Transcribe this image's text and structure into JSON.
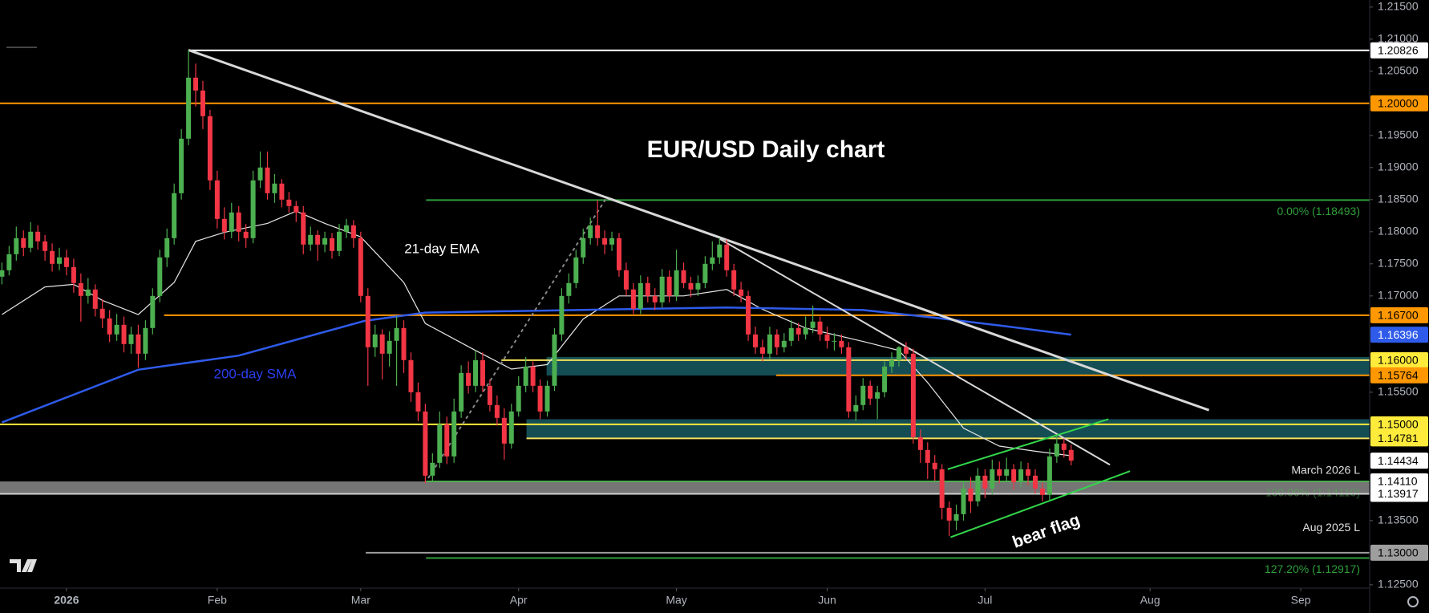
{
  "chart_data": {
    "type": "candlestick",
    "title": "EUR/USD Daily chart",
    "annotations": [
      "bear flag"
    ],
    "up_color": "#4caf50",
    "down_color": "#f23645",
    "grid": false,
    "xlim": [
      -9.27,
      181.6
    ],
    "xticks": [
      {
        "value": 0,
        "label": "2026"
      },
      {
        "value": 21,
        "label": "Feb"
      },
      {
        "value": 41,
        "label": "Mar"
      },
      {
        "value": 63,
        "label": "Apr"
      },
      {
        "value": 85,
        "label": "May"
      },
      {
        "value": 106,
        "label": "Jun"
      },
      {
        "value": 128,
        "label": "Jul"
      },
      {
        "value": 151,
        "label": "Aug"
      },
      {
        "value": 172,
        "label": "Sep"
      }
    ],
    "ylim": [
      1.12448,
      1.2161
    ],
    "yticks": [
      {
        "value": 1.215,
        "label": "1.21500"
      },
      {
        "value": 1.21,
        "label": "1.21000"
      },
      {
        "value": 1.205,
        "label": "1.20500"
      },
      {
        "value": 1.195,
        "label": "1.19500"
      },
      {
        "value": 1.19,
        "label": "1.19000"
      },
      {
        "value": 1.185,
        "label": "1.18500"
      },
      {
        "value": 1.18,
        "label": "1.18000"
      },
      {
        "value": 1.175,
        "label": "1.17500"
      },
      {
        "value": 1.17,
        "label": "1.17000"
      },
      {
        "value": 1.155,
        "label": "1.15500"
      },
      {
        "value": 1.135,
        "label": "1.13500"
      },
      {
        "value": 1.125,
        "label": "1.12500"
      }
    ],
    "x": [
      -9,
      -8,
      -7,
      -6,
      -5,
      -4,
      -3,
      -2,
      -1,
      0,
      1,
      2,
      3,
      4,
      5,
      6,
      7,
      8,
      9,
      10,
      11,
      12,
      13,
      14,
      15,
      16,
      17,
      18,
      19,
      20,
      21,
      22,
      23,
      24,
      25,
      26,
      27,
      28,
      29,
      30,
      31,
      32,
      33,
      34,
      35,
      36,
      37,
      38,
      39,
      40,
      41,
      42,
      43,
      44,
      45,
      46,
      47,
      48,
      49,
      50,
      51,
      52,
      53,
      54,
      55,
      56,
      57,
      58,
      59,
      60,
      61,
      62,
      63,
      64,
      65,
      66,
      67,
      68,
      69,
      70,
      71,
      72,
      73,
      74,
      75,
      76,
      77,
      78,
      79,
      80,
      81,
      82,
      83,
      84,
      85,
      86,
      87,
      88,
      89,
      90,
      91,
      92,
      93,
      94,
      95,
      96,
      97,
      98,
      99,
      100,
      101,
      102,
      103,
      104,
      105,
      106,
      107,
      108,
      109,
      110,
      111,
      112,
      113,
      114,
      115,
      116,
      117,
      118,
      119,
      120,
      121,
      122,
      123,
      124,
      125,
      126,
      127,
      128,
      129,
      130,
      131,
      132,
      133,
      134,
      135,
      136,
      137,
      138,
      139,
      140
    ],
    "series": {
      "open": [
        1.173,
        1.174,
        1.1765,
        1.179,
        1.1775,
        1.18,
        1.1785,
        1.177,
        1.175,
        1.176,
        1.1745,
        1.172,
        1.17,
        1.171,
        1.168,
        1.1665,
        1.164,
        1.1655,
        1.1625,
        1.164,
        1.161,
        1.165,
        1.17,
        1.176,
        1.179,
        1.186,
        1.1945,
        1.204,
        1.202,
        1.198,
        1.188,
        1.182,
        1.18,
        1.183,
        1.18,
        1.179,
        1.188,
        1.19,
        1.186,
        1.1875,
        1.185,
        1.184,
        1.183,
        1.178,
        1.1795,
        1.178,
        1.179,
        1.177,
        1.18,
        1.181,
        1.179,
        1.17,
        1.162,
        1.164,
        1.161,
        1.163,
        1.165,
        1.16,
        1.155,
        1.152,
        1.142,
        1.144,
        1.15,
        1.145,
        1.152,
        1.158,
        1.156,
        1.16,
        1.156,
        1.153,
        1.151,
        1.147,
        1.152,
        1.156,
        1.159,
        1.156,
        1.152,
        1.156,
        1.164,
        1.17,
        1.172,
        1.176,
        1.179,
        1.181,
        1.179,
        1.178,
        1.179,
        1.174,
        1.171,
        1.168,
        1.172,
        1.17,
        1.169,
        1.173,
        1.17,
        1.174,
        1.172,
        1.171,
        1.172,
        1.175,
        1.176,
        1.178,
        1.174,
        1.171,
        1.17,
        1.164,
        1.162,
        1.161,
        1.164,
        1.162,
        1.163,
        1.165,
        1.164,
        1.165,
        1.166,
        1.164,
        1.163,
        1.163,
        1.162,
        1.152,
        1.153,
        1.156,
        1.154,
        1.155,
        1.159,
        1.16,
        1.162,
        1.161,
        1.148,
        1.146,
        1.144,
        1.143,
        1.137,
        1.135,
        1.136,
        1.14,
        1.138,
        1.142,
        1.14,
        1.143,
        1.142,
        1.143,
        1.141,
        1.143,
        1.142,
        1.14,
        1.139,
        1.145,
        1.147,
        1.146
      ],
      "high": [
        1.1752,
        1.1778,
        1.1808,
        1.1802,
        1.1815,
        1.181,
        1.1795,
        1.1782,
        1.1775,
        1.1772,
        1.1758,
        1.1735,
        1.1728,
        1.1718,
        1.1695,
        1.1678,
        1.1672,
        1.1668,
        1.1652,
        1.1655,
        1.1662,
        1.1712,
        1.1772,
        1.1805,
        1.1875,
        1.196,
        1.2083,
        1.2062,
        1.2035,
        1.199,
        1.1895,
        1.1838,
        1.1845,
        1.184,
        1.1812,
        1.1895,
        1.1925,
        1.1925,
        1.189,
        1.1882,
        1.1862,
        1.1848,
        1.184,
        1.1808,
        1.1802,
        1.18,
        1.1798,
        1.1812,
        1.182,
        1.1818,
        1.18,
        1.1712,
        1.1655,
        1.1648,
        1.1645,
        1.1668,
        1.1662,
        1.1612,
        1.1565,
        1.1532,
        1.1455,
        1.152,
        1.1512,
        1.154,
        1.1592,
        1.1598,
        1.1615,
        1.1612,
        1.157,
        1.1545,
        1.1525,
        1.1532,
        1.1575,
        1.1605,
        1.1598,
        1.157,
        1.1568,
        1.165,
        1.1712,
        1.1735,
        1.1772,
        1.1805,
        1.1822,
        1.1849,
        1.1802,
        1.18,
        1.1798,
        1.1752,
        1.172,
        1.1732,
        1.173,
        1.1712,
        1.1742,
        1.174,
        1.1772,
        1.1752,
        1.173,
        1.1732,
        1.1762,
        1.1785,
        1.179,
        1.1788,
        1.175,
        1.1722,
        1.1708,
        1.1652,
        1.1632,
        1.1652,
        1.1648,
        1.1642,
        1.1662,
        1.1658,
        1.1668,
        1.1685,
        1.1668,
        1.1652,
        1.1642,
        1.164,
        1.1628,
        1.1545,
        1.1572,
        1.1568,
        1.156,
        1.1598,
        1.1612,
        1.1622,
        1.1628,
        1.1618,
        1.1492,
        1.1472,
        1.1452,
        1.1438,
        1.138,
        1.1375,
        1.1412,
        1.1418,
        1.1432,
        1.143,
        1.1445,
        1.1442,
        1.1448,
        1.1438,
        1.1442,
        1.144,
        1.143,
        1.141,
        1.1462,
        1.1483,
        1.1478,
        1.1468
      ],
      "low": [
        1.1718,
        1.1732,
        1.1755,
        1.1762,
        1.1768,
        1.1772,
        1.1755,
        1.1738,
        1.174,
        1.1732,
        1.1705,
        1.166,
        1.1688,
        1.1668,
        1.165,
        1.1628,
        1.163,
        1.1612,
        1.161,
        1.1588,
        1.16,
        1.164,
        1.169,
        1.1745,
        1.178,
        1.185,
        1.1935,
        1.1995,
        1.196,
        1.1865,
        1.1805,
        1.1788,
        1.179,
        1.1785,
        1.1775,
        1.1782,
        1.1868,
        1.185,
        1.1845,
        1.1838,
        1.183,
        1.1815,
        1.1765,
        1.177,
        1.1755,
        1.1768,
        1.1758,
        1.1762,
        1.179,
        1.1775,
        1.169,
        1.156,
        1.1605,
        1.157,
        1.159,
        1.156,
        1.158,
        1.1535,
        1.1505,
        1.1408,
        1.141,
        1.1432,
        1.1438,
        1.144,
        1.151,
        1.1548,
        1.155,
        1.155,
        1.152,
        1.1498,
        1.1445,
        1.1462,
        1.1512,
        1.155,
        1.155,
        1.1508,
        1.1512,
        1.1552,
        1.163,
        1.1688,
        1.1712,
        1.175,
        1.178,
        1.1778,
        1.1765,
        1.177,
        1.173,
        1.17,
        1.1672,
        1.1672,
        1.169,
        1.1678,
        1.1682,
        1.169,
        1.1692,
        1.1712,
        1.1698,
        1.17,
        1.1712,
        1.174,
        1.175,
        1.173,
        1.17,
        1.169,
        1.163,
        1.161,
        1.1598,
        1.1602,
        1.1608,
        1.1612,
        1.1622,
        1.163,
        1.1632,
        1.1642,
        1.163,
        1.1618,
        1.1615,
        1.161,
        1.151,
        1.1505,
        1.1522,
        1.153,
        1.1508,
        1.1542,
        1.158,
        1.159,
        1.16,
        1.147,
        1.144,
        1.1415,
        1.1412,
        1.1352,
        1.1326,
        1.1335,
        1.135,
        1.1362,
        1.1372,
        1.1385,
        1.139,
        1.1408,
        1.1412,
        1.1398,
        1.1402,
        1.1405,
        1.1392,
        1.138,
        1.1382,
        1.144,
        1.1448,
        1.1436
      ],
      "close": [
        1.174,
        1.1765,
        1.179,
        1.1775,
        1.18,
        1.1785,
        1.177,
        1.175,
        1.176,
        1.1745,
        1.172,
        1.17,
        1.171,
        1.168,
        1.1665,
        1.164,
        1.1655,
        1.1625,
        1.164,
        1.161,
        1.165,
        1.17,
        1.176,
        1.179,
        1.186,
        1.1945,
        1.204,
        1.202,
        1.198,
        1.188,
        1.182,
        1.18,
        1.183,
        1.18,
        1.179,
        1.188,
        1.19,
        1.186,
        1.1875,
        1.185,
        1.184,
        1.183,
        1.178,
        1.1795,
        1.178,
        1.179,
        1.177,
        1.18,
        1.181,
        1.179,
        1.17,
        1.162,
        1.164,
        1.161,
        1.163,
        1.165,
        1.16,
        1.155,
        1.152,
        1.142,
        1.144,
        1.15,
        1.145,
        1.152,
        1.158,
        1.156,
        1.16,
        1.156,
        1.153,
        1.151,
        1.147,
        1.152,
        1.156,
        1.159,
        1.156,
        1.152,
        1.156,
        1.164,
        1.17,
        1.172,
        1.176,
        1.179,
        1.181,
        1.179,
        1.178,
        1.179,
        1.174,
        1.171,
        1.168,
        1.172,
        1.17,
        1.169,
        1.173,
        1.17,
        1.174,
        1.172,
        1.171,
        1.172,
        1.175,
        1.176,
        1.178,
        1.174,
        1.171,
        1.17,
        1.164,
        1.162,
        1.161,
        1.164,
        1.162,
        1.163,
        1.165,
        1.164,
        1.165,
        1.166,
        1.164,
        1.163,
        1.163,
        1.162,
        1.152,
        1.153,
        1.156,
        1.154,
        1.155,
        1.159,
        1.16,
        1.162,
        1.161,
        1.148,
        1.146,
        1.144,
        1.143,
        1.137,
        1.135,
        1.136,
        1.14,
        1.138,
        1.142,
        1.14,
        1.143,
        1.142,
        1.143,
        1.141,
        1.143,
        1.142,
        1.14,
        1.139,
        1.145,
        1.147,
        1.146,
        1.14434
      ],
      "tag_color": "#ffffff"
    },
    "indicators": [
      {
        "name": "21-day EMA",
        "color": "#e6e6e6",
        "x": [
          -9,
          -3,
          1,
          5,
          10,
          15,
          18,
          22,
          28,
          32,
          36,
          41,
          47,
          50,
          57,
          62,
          67,
          72,
          77,
          86,
          92,
          97,
          103,
          111,
          116,
          120,
          125,
          130,
          135,
          140
        ],
        "values": [
          1.1671,
          1.1714,
          1.1718,
          1.1693,
          1.1671,
          1.1721,
          1.1785,
          1.1799,
          1.1813,
          1.1832,
          1.1813,
          1.1792,
          1.1721,
          1.1657,
          1.1615,
          1.1586,
          1.1593,
          1.1664,
          1.17,
          1.17,
          1.171,
          1.1679,
          1.165,
          1.1629,
          1.1615,
          1.1565,
          1.1494,
          1.1466,
          1.1458,
          1.1451
        ]
      },
      {
        "name": "200-day SMA",
        "color": "#2f5bea",
        "tag_color": "#2f5bea",
        "x": [
          -9,
          10,
          24,
          41.5,
          50,
          92,
          111,
          121,
          130,
          140
        ],
        "values": [
          1.1503,
          1.1585,
          1.1607,
          1.1661,
          1.1674,
          1.1682,
          1.1678,
          1.1666,
          1.1654,
          1.16396
        ]
      }
    ],
    "zones": [
      {
        "from": 66.9,
        "low": 1.1576,
        "high": 1.1605,
        "color": "#175c63"
      },
      {
        "from": 64.1,
        "low": 1.1478,
        "high": 1.1508,
        "color": "#175c63"
      },
      {
        "low": 1.13917,
        "high": 1.1411,
        "color": "#8a8a8a"
      }
    ],
    "levels": [
      {
        "price": 1.20826,
        "from": 17,
        "color": "#ffffff",
        "tag_color": "#ffffff"
      },
      {
        "price": {
          "value": 1.2,
          "label": "1.20000"
        },
        "color": "#ff9800",
        "tag_color": "#ff9800"
      },
      {
        "price": 1.18493,
        "from": 50.1,
        "color": "#2e9e3a",
        "text": "0.00% (1.18493)"
      },
      {
        "price": {
          "value": 1.167,
          "label": "1.16700"
        },
        "from": 13.6,
        "color": "#ff9800",
        "tag_color": "#ff9800"
      },
      {
        "price": {
          "value": 1.16,
          "label": "1.16000"
        },
        "from": 60.6,
        "color": "#f5e15a",
        "tag_color": "#ffeb3b"
      },
      {
        "price": 1.15764,
        "from": 98.9,
        "color": "#ff9800",
        "tag_color": "#ff9800"
      },
      {
        "price": {
          "value": 1.15,
          "label": "1.15000"
        },
        "color": "#ffeb3b",
        "tag_color": "#ffeb3b"
      },
      {
        "price": 1.14781,
        "from": 64.1,
        "color": "#f5e15a",
        "tag_color": "#ffeb3b"
      },
      {
        "price": {
          "value": 1.1411,
          "label": "1.14110"
        },
        "from": 50.1,
        "color": "#4caf50",
        "tag_color": "#ffffff",
        "text": "100.00% (1.14110)",
        "note": "March 2026 L"
      },
      {
        "price": 1.13917,
        "color": "#d0d0d0",
        "tag_color": "#ffffff",
        "note": "Aug 2025 L"
      },
      {
        "price": {
          "value": 1.13,
          "label": "1.13000"
        },
        "from": 41.7,
        "color": "#9e9e9e",
        "tag_color": "#9e9e9e"
      },
      {
        "price": 1.12917,
        "from": 50.1,
        "color": "#2e9e3a",
        "text": "127.20% (1.12917)"
      }
    ],
    "trendlines": [
      {
        "x": [
          17,
          159.2
        ],
        "values": [
          1.2083,
          1.1522
        ],
        "color": "#d8d8d8"
      },
      {
        "x": [
          91,
          145.4
        ],
        "values": [
          1.1789,
          1.1437
        ],
        "color": "#d8d8d8"
      },
      {
        "x": [
          122.8,
          145.2
        ],
        "values": [
          1.143,
          1.1508
        ],
        "color": "#32d74b"
      },
      {
        "x": [
          123.2,
          148.2
        ],
        "values": [
          1.1324,
          1.1427
        ],
        "color": "#32d74b"
      },
      {
        "x": [
          50.4,
          75.2
        ],
        "values": [
          1.1416,
          1.1852
        ],
        "color": "#8a8a8a",
        "dash": true
      }
    ]
  }
}
